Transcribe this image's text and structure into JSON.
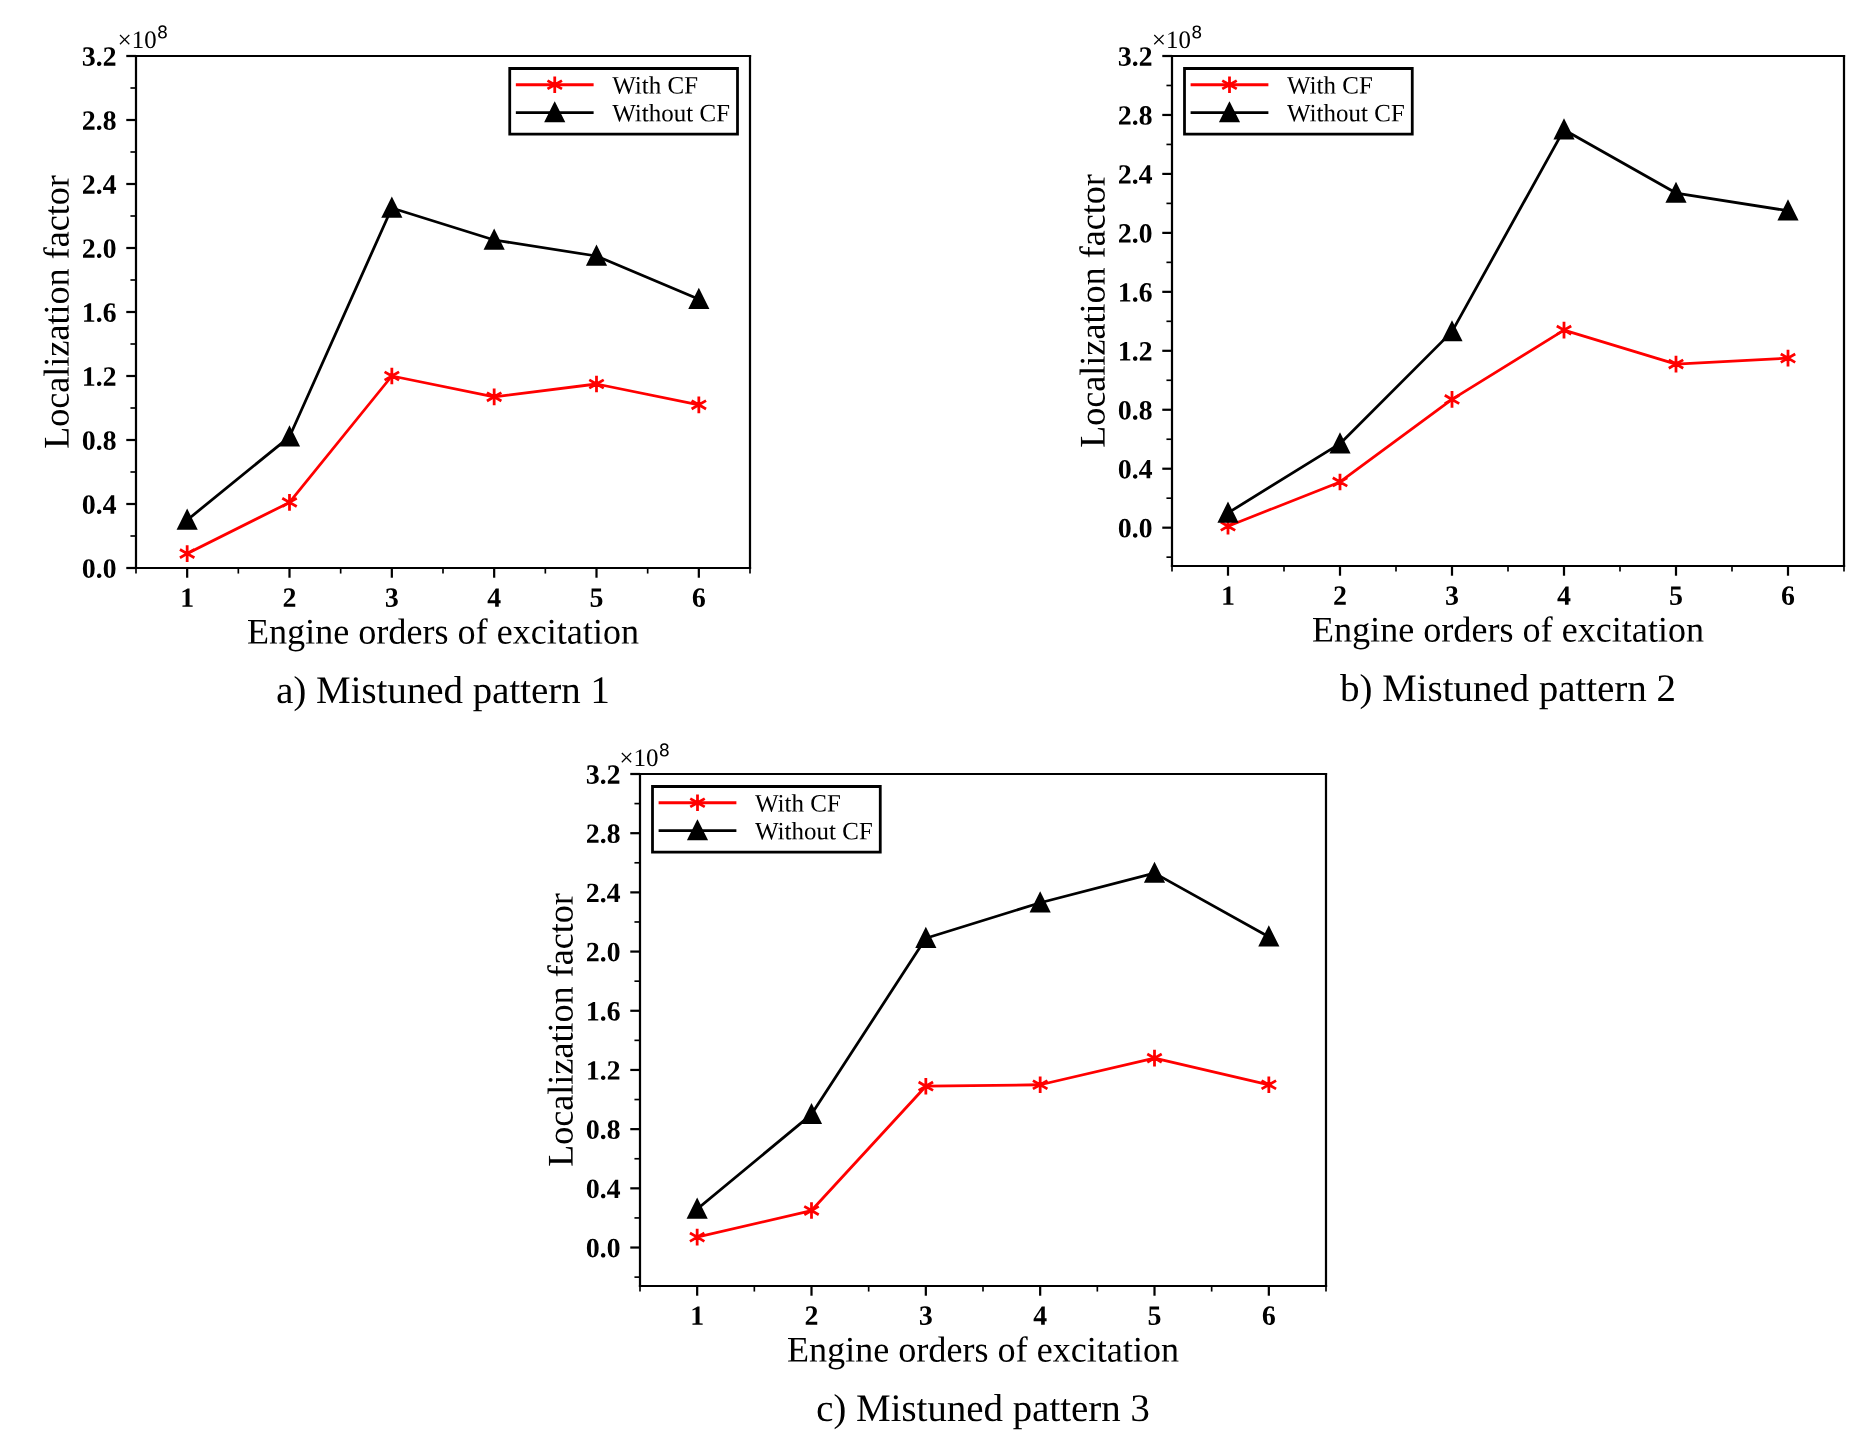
{
  "chart_data": [
    {
      "type": "line",
      "title": "a) Mistuned pattern 1",
      "xlabel": "Engine orders of excitation",
      "ylabel": "Localization factor",
      "annotations": [
        "×10$^{8}$"
      ],
      "x": [
        1,
        2,
        3,
        4,
        5,
        6
      ],
      "xlim": [
        0.5,
        6.5
      ],
      "xticks": [
        1,
        2,
        3,
        4,
        5,
        6
      ],
      "ylim": [
        0,
        3.2
      ],
      "yticks": [
        {
          "value": 0,
          "label": "0.0"
        },
        {
          "value": 0.4,
          "label": "0.4"
        },
        {
          "value": 0.8,
          "label": "0.8"
        },
        {
          "value": 1.2,
          "label": "1.2"
        },
        {
          "value": 1.6,
          "label": "1.6"
        },
        {
          "value": 2.0,
          "label": "2.0"
        },
        {
          "value": 2.4,
          "label": "2.4"
        },
        {
          "value": 2.8,
          "label": "2.8"
        },
        {
          "value": 3.2,
          "label": "3.2"
        }
      ],
      "grid": false,
      "legend": "top right",
      "series": [
        {
          "name": "With CF",
          "color": "#ff0000",
          "marker": "cross",
          "values": [
            0.09,
            0.41,
            1.2,
            1.07,
            1.15,
            1.02
          ]
        },
        {
          "name": "Without CF",
          "color": "#000000",
          "marker": "triangle",
          "values": [
            0.3,
            0.82,
            2.25,
            2.05,
            1.95,
            1.68
          ]
        }
      ]
    },
    {
      "type": "line",
      "title": "b) Mistuned pattern 2",
      "xlabel": "Engine orders of excitation",
      "ylabel": "Localization factor",
      "annotations": [
        "×10$^{8}$"
      ],
      "x": [
        1,
        2,
        3,
        4,
        5,
        6
      ],
      "xlim": [
        0.5,
        6.5
      ],
      "xticks": [
        1,
        2,
        3,
        4,
        5,
        6
      ],
      "ylim": [
        -0.26,
        3.2
      ],
      "yticks": [
        {
          "value": 0,
          "label": "0.0"
        },
        {
          "value": 0.4,
          "label": "0.4"
        },
        {
          "value": 0.8,
          "label": "0.8"
        },
        {
          "value": 1.2,
          "label": "1.2"
        },
        {
          "value": 1.6,
          "label": "1.6"
        },
        {
          "value": 2.0,
          "label": "2.0"
        },
        {
          "value": 2.4,
          "label": "2.4"
        },
        {
          "value": 2.8,
          "label": "2.8"
        },
        {
          "value": 3.2,
          "label": "3.2"
        }
      ],
      "grid": false,
      "legend": "top left",
      "series": [
        {
          "name": "With CF",
          "color": "#ff0000",
          "marker": "cross",
          "values": [
            0.01,
            0.31,
            0.87,
            1.34,
            1.11,
            1.15
          ]
        },
        {
          "name": "Without CF",
          "color": "#000000",
          "marker": "triangle",
          "values": [
            0.1,
            0.57,
            1.33,
            2.7,
            2.27,
            2.15
          ]
        }
      ]
    },
    {
      "type": "line",
      "title": "c) Mistuned pattern 3",
      "xlabel": "Engine orders of excitation",
      "ylabel": "Localization factor",
      "annotations": [
        "×10$^{8}$"
      ],
      "x": [
        1,
        2,
        3,
        4,
        5,
        6
      ],
      "xlim": [
        0.5,
        6.5
      ],
      "xticks": [
        1,
        2,
        3,
        4,
        5,
        6
      ],
      "ylim": [
        -0.26,
        3.2
      ],
      "yticks": [
        {
          "value": 0,
          "label": "0.0"
        },
        {
          "value": 0.4,
          "label": "0.4"
        },
        {
          "value": 0.8,
          "label": "0.8"
        },
        {
          "value": 1.2,
          "label": "1.2"
        },
        {
          "value": 1.6,
          "label": "1.6"
        },
        {
          "value": 2.0,
          "label": "2.0"
        },
        {
          "value": 2.4,
          "label": "2.4"
        },
        {
          "value": 2.8,
          "label": "2.8"
        },
        {
          "value": 3.2,
          "label": "3.2"
        }
      ],
      "grid": false,
      "legend": "top left",
      "series": [
        {
          "name": "With CF",
          "color": "#ff0000",
          "marker": "cross",
          "values": [
            0.07,
            0.25,
            1.09,
            1.1,
            1.28,
            1.1
          ]
        },
        {
          "name": "Without CF",
          "color": "#000000",
          "marker": "triangle",
          "values": [
            0.26,
            0.9,
            2.09,
            2.33,
            2.53,
            2.1
          ]
        }
      ]
    }
  ]
}
